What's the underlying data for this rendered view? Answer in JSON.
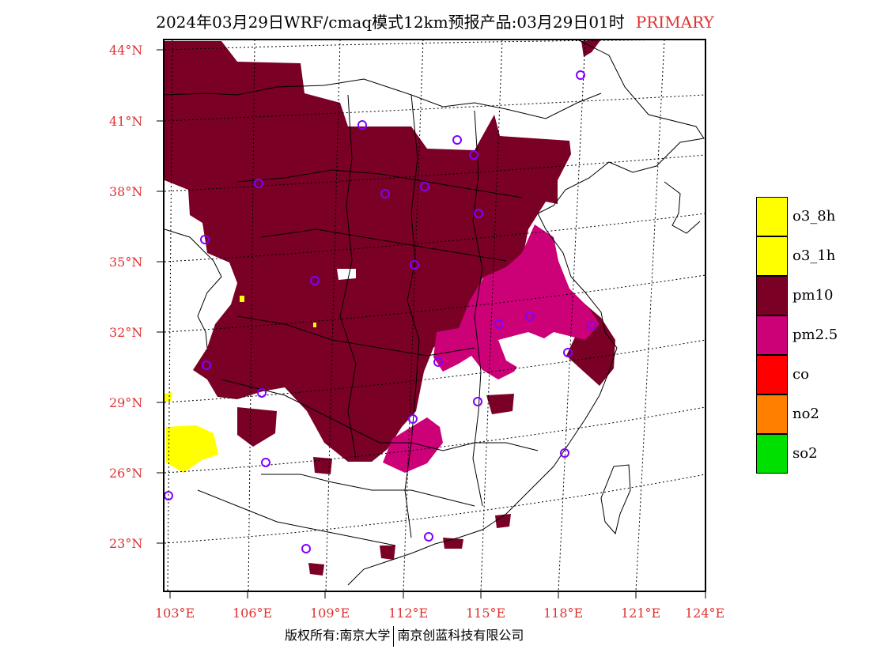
{
  "header": {
    "title": "2024年03月29日WRF/cmaq模式12km预报产品:03月29日01时",
    "status": "PRIMARY"
  },
  "footer": {
    "left": "版权所有:南京大学",
    "right": "南京创蓝科技有限公司"
  },
  "map": {
    "lat_labels": [
      "44°N",
      "41°N",
      "38°N",
      "35°N",
      "32°N",
      "29°N",
      "26°N",
      "23°N"
    ],
    "lon_labels": [
      "103°E",
      "106°E",
      "109°E",
      "112°E",
      "115°E",
      "118°E",
      "121°E",
      "124°E"
    ],
    "label_color": "#e03030"
  },
  "legend": {
    "items": [
      {
        "label": "o3_8h",
        "color": "#ffff00"
      },
      {
        "label": "o3_1h",
        "color": "#ffff00"
      },
      {
        "label": "pm10",
        "color": "#7a0026"
      },
      {
        "label": "pm2.5",
        "color": "#cc0077"
      },
      {
        "label": "co",
        "color": "#ff0000"
      },
      {
        "label": "no2",
        "color": "#ff8000"
      },
      {
        "label": "so2",
        "color": "#00e000"
      }
    ]
  }
}
